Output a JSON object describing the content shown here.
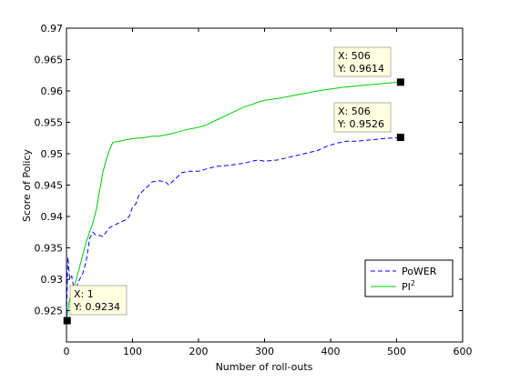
{
  "chart_data": {
    "type": "line",
    "xlabel": "Number of roll-outs",
    "ylabel": "Score of Policy",
    "xlim": [
      0,
      600
    ],
    "ylim": [
      0.92,
      0.97
    ],
    "xticks": [
      "0",
      "100",
      "200",
      "300",
      "400",
      "500",
      "600"
    ],
    "yticks": [
      "0.925",
      "0.93",
      "0.935",
      "0.94",
      "0.945",
      "0.95",
      "0.955",
      "0.96",
      "0.965",
      "0.97"
    ],
    "legend": {
      "position": "bottom-right"
    },
    "series": [
      {
        "name": "PoWER",
        "color": "#0000ff",
        "style": "dashed",
        "points": [
          [
            0,
            0.9234
          ],
          [
            2,
            0.9335
          ],
          [
            5,
            0.93
          ],
          [
            8,
            0.9305
          ],
          [
            12,
            0.928
          ],
          [
            16,
            0.929
          ],
          [
            20,
            0.93
          ],
          [
            25,
            0.931
          ],
          [
            30,
            0.933
          ],
          [
            35,
            0.9365
          ],
          [
            40,
            0.9375
          ],
          [
            45,
            0.937
          ],
          [
            50,
            0.937
          ],
          [
            55,
            0.9368
          ],
          [
            60,
            0.9375
          ],
          [
            65,
            0.9382
          ],
          [
            70,
            0.9385
          ],
          [
            80,
            0.939
          ],
          [
            90,
            0.9395
          ],
          [
            95,
            0.94
          ],
          [
            100,
            0.9415
          ],
          [
            105,
            0.942
          ],
          [
            110,
            0.9435
          ],
          [
            115,
            0.944
          ],
          [
            120,
            0.9445
          ],
          [
            125,
            0.945
          ],
          [
            130,
            0.9455
          ],
          [
            140,
            0.9457
          ],
          [
            150,
            0.9455
          ],
          [
            155,
            0.945
          ],
          [
            160,
            0.9455
          ],
          [
            165,
            0.946
          ],
          [
            170,
            0.9465
          ],
          [
            175,
            0.947
          ],
          [
            185,
            0.9472
          ],
          [
            200,
            0.9472
          ],
          [
            210,
            0.9475
          ],
          [
            220,
            0.9478
          ],
          [
            230,
            0.948
          ],
          [
            250,
            0.9482
          ],
          [
            270,
            0.9485
          ],
          [
            280,
            0.9488
          ],
          [
            290,
            0.949
          ],
          [
            300,
            0.9488
          ],
          [
            320,
            0.949
          ],
          [
            340,
            0.9495
          ],
          [
            360,
            0.95
          ],
          [
            380,
            0.9505
          ],
          [
            395,
            0.9512
          ],
          [
            410,
            0.9517
          ],
          [
            425,
            0.952
          ],
          [
            440,
            0.952
          ],
          [
            460,
            0.9522
          ],
          [
            480,
            0.9524
          ],
          [
            506,
            0.9526
          ]
        ]
      },
      {
        "name": "PI",
        "name_sup": "2",
        "color": "#00cc00",
        "style": "solid",
        "points": [
          [
            0,
            0.9234
          ],
          [
            5,
            0.927
          ],
          [
            10,
            0.9285
          ],
          [
            15,
            0.93
          ],
          [
            20,
            0.932
          ],
          [
            25,
            0.934
          ],
          [
            30,
            0.936
          ],
          [
            35,
            0.9375
          ],
          [
            40,
            0.939
          ],
          [
            45,
            0.941
          ],
          [
            50,
            0.944
          ],
          [
            55,
            0.947
          ],
          [
            60,
            0.949
          ],
          [
            65,
            0.9505
          ],
          [
            70,
            0.9518
          ],
          [
            80,
            0.952
          ],
          [
            90,
            0.9522
          ],
          [
            100,
            0.9524
          ],
          [
            110,
            0.9525
          ],
          [
            120,
            0.9526
          ],
          [
            130,
            0.9528
          ],
          [
            140,
            0.9528
          ],
          [
            150,
            0.953
          ],
          [
            160,
            0.9532
          ],
          [
            170,
            0.9535
          ],
          [
            180,
            0.9538
          ],
          [
            190,
            0.954
          ],
          [
            200,
            0.9542
          ],
          [
            210,
            0.9545
          ],
          [
            220,
            0.955
          ],
          [
            230,
            0.9555
          ],
          [
            240,
            0.956
          ],
          [
            250,
            0.9565
          ],
          [
            260,
            0.957
          ],
          [
            270,
            0.9575
          ],
          [
            280,
            0.9578
          ],
          [
            290,
            0.9582
          ],
          [
            300,
            0.9585
          ],
          [
            320,
            0.9588
          ],
          [
            340,
            0.9592
          ],
          [
            360,
            0.9596
          ],
          [
            380,
            0.96
          ],
          [
            400,
            0.9603
          ],
          [
            420,
            0.9606
          ],
          [
            440,
            0.9608
          ],
          [
            460,
            0.961
          ],
          [
            480,
            0.9612
          ],
          [
            506,
            0.9614
          ]
        ]
      }
    ],
    "datatips": [
      {
        "x_label": "X: 506",
        "y_label": "Y: 0.9614",
        "x": 506,
        "y": 0.9614
      },
      {
        "x_label": "X: 506",
        "y_label": "Y: 0.9526",
        "x": 506,
        "y": 0.9526
      },
      {
        "x_label": "X: 1",
        "y_label": "Y: 0.9234",
        "x": 1,
        "y": 0.9234
      }
    ]
  }
}
